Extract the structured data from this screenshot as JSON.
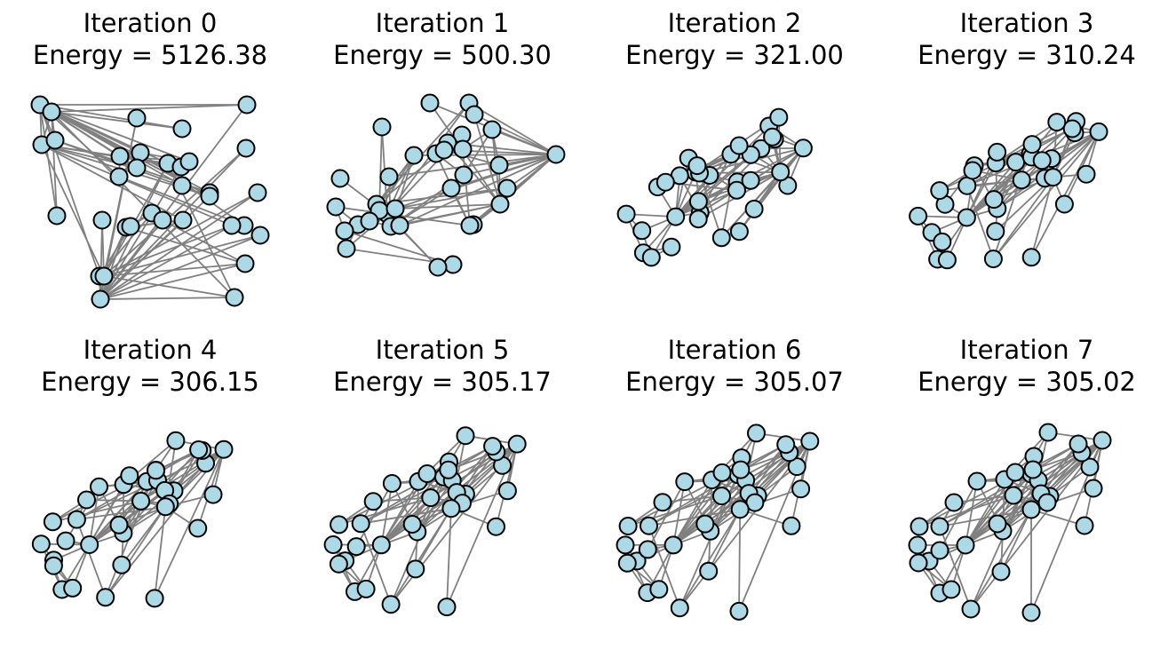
{
  "node_color": "#add8e6",
  "node_stroke": "#000000",
  "edge_color": "#808080",
  "panels": [
    {
      "iteration": "Iteration 0",
      "energy": "Energy = 5126.38"
    },
    {
      "iteration": "Iteration 1",
      "energy": "Energy = 500.30"
    },
    {
      "iteration": "Iteration 2",
      "energy": "Energy = 321.00"
    },
    {
      "iteration": "Iteration 3",
      "energy": "Energy = 310.24"
    },
    {
      "iteration": "Iteration 4",
      "energy": "Energy = 306.15"
    },
    {
      "iteration": "Iteration 5",
      "energy": "Energy = 305.17"
    },
    {
      "iteration": "Iteration 6",
      "energy": "Energy = 305.07"
    },
    {
      "iteration": "Iteration 7",
      "energy": "Energy = 305.02"
    }
  ]
}
